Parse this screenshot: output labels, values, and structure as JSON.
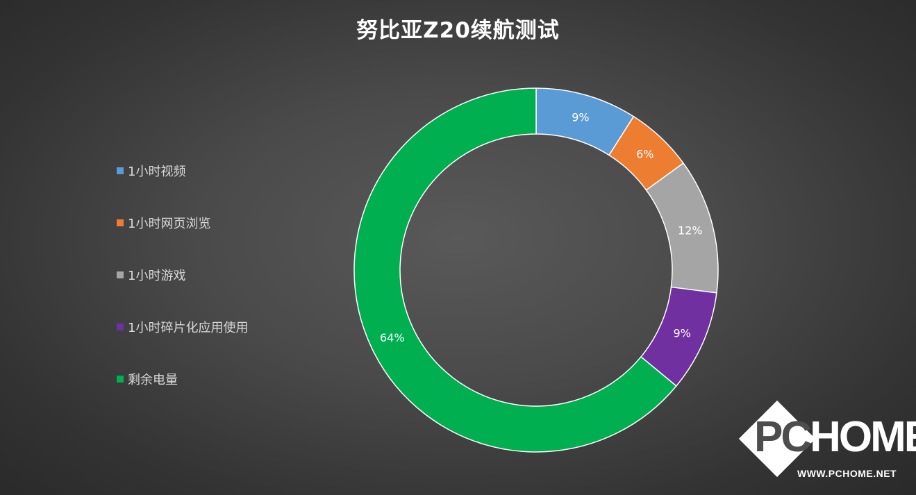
{
  "chart_data": {
    "type": "pie",
    "variant": "donut",
    "title": "努比亚Z20续航测试",
    "legend_position": "left",
    "categories": [
      "1小时视频",
      "1小时网页浏览",
      "1小时游戏",
      "1小时碎片化应用使用",
      "剩余电量"
    ],
    "values": [
      9,
      6,
      12,
      9,
      64
    ],
    "value_labels": [
      "9%",
      "6%",
      "12%",
      "9%",
      "64%"
    ],
    "colors": [
      "#5b9bd5",
      "#ed7d31",
      "#a5a5a5",
      "#7030a0",
      "#00b050"
    ]
  },
  "watermark": {
    "logo_left": "PC",
    "logo_right": "HOME",
    "url": "WWW.PCHOME.NET"
  }
}
